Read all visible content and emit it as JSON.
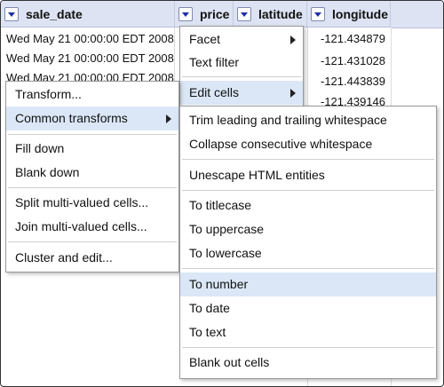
{
  "columns": {
    "sale_date": "sale_date",
    "price": "price",
    "latitude": "latitude",
    "longitude": "longitude"
  },
  "rows": {
    "sale_date": [
      "Wed May 21 00:00:00 EDT 2008",
      "Wed May 21 00:00:00 EDT 2008",
      "Wed May 21 00:00:00 EDT 2008"
    ],
    "longitude": [
      "-121.434879",
      "-121.431028",
      "-121.443839",
      "-121.439146"
    ]
  },
  "price_menu": {
    "facet": "Facet",
    "text_filter": "Text filter",
    "edit_cells": "Edit cells"
  },
  "edit_menu": {
    "transform": "Transform...",
    "common_transforms": "Common transforms",
    "fill_down": "Fill down",
    "blank_down": "Blank down",
    "split": "Split multi-valued cells...",
    "join": "Join multi-valued cells...",
    "cluster": "Cluster and edit..."
  },
  "transforms_menu": {
    "trim": "Trim leading and trailing whitespace",
    "collapse": "Collapse consecutive whitespace",
    "unescape": "Unescape HTML entities",
    "titlecase": "To titlecase",
    "uppercase": "To uppercase",
    "lowercase": "To lowercase",
    "to_number": "To number",
    "to_date": "To date",
    "to_text": "To text",
    "blank_out": "Blank out cells"
  },
  "colors": {
    "header_bg": "#dde3f3",
    "highlight": "#dbe7f7",
    "dropdown_arrow": "#1f2fa8"
  }
}
